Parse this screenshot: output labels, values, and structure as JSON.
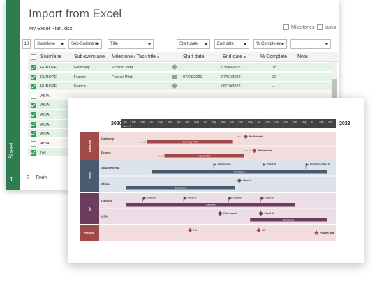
{
  "window": {
    "title": "Import from Excel",
    "file_name": "My Excel Plan.xlsx",
    "milestones_label": "Milestones",
    "tasks_label": "tasks",
    "sheet_vertical_label": "Sheet",
    "sheet_number": "1"
  },
  "column_mapping": {
    "row_number": "18",
    "dropdowns": [
      "Swimlane",
      "Sub-Swimlane",
      "Title",
      "Start date",
      "End date",
      "% Completed",
      ""
    ]
  },
  "table": {
    "headers": [
      "Swimlane",
      "Sub-swimlane",
      "Milestone / Task title",
      "Start date",
      "End date",
      "% Complete",
      "Note"
    ],
    "rows": [
      {
        "swimlane": "EUROPE",
        "sub": "Germany",
        "title": "Publish data",
        "start": "",
        "end": "03/04/2022",
        "pct": "15",
        "checked": true
      },
      {
        "swimlane": "EUROPE",
        "sub": "France",
        "title": "France Pilot",
        "start": "07/03/2021",
        "end": "07/01/2022",
        "pct": "20",
        "checked": true
      },
      {
        "swimlane": "EUROPE",
        "sub": "France",
        "title": "",
        "start": "",
        "end": "06/10/2022",
        "pct": "-",
        "checked": true
      },
      {
        "swimlane": "ASIA",
        "sub": "",
        "title": "",
        "start": "",
        "end": "",
        "pct": "",
        "checked": false
      },
      {
        "swimlane": "ASIA",
        "sub": "",
        "title": "",
        "start": "",
        "end": "",
        "pct": "",
        "checked": true
      },
      {
        "swimlane": "ASIA",
        "sub": "",
        "title": "",
        "start": "",
        "end": "",
        "pct": "",
        "checked": true
      },
      {
        "swimlane": "ASIA",
        "sub": "",
        "title": "",
        "start": "",
        "end": "",
        "pct": "",
        "checked": true
      },
      {
        "swimlane": "ASIA",
        "sub": "",
        "title": "",
        "start": "",
        "end": "",
        "pct": "",
        "checked": true
      },
      {
        "swimlane": "ASIA",
        "sub": "",
        "title": "",
        "start": "",
        "end": "",
        "pct": "",
        "checked": false
      },
      {
        "swimlane": "NA",
        "sub": "",
        "title": "",
        "start": "",
        "end": "",
        "pct": "",
        "checked": true
      }
    ]
  },
  "bottom_tabs": [
    "2",
    "Data"
  ],
  "timeline": {
    "start_year": "2020",
    "end_year": "2023",
    "months": [
      "Jan",
      "Mar",
      "May",
      "Jul",
      "Sep",
      "Nov",
      "Jan",
      "Mar",
      "May",
      "Jul",
      "Sep",
      "Nov",
      "Jan",
      "Mar",
      "May",
      "Jul",
      "Sep",
      "Nov",
      "Jan",
      "Mar",
      "May",
      "Jul",
      "Sep",
      "Nov"
    ],
    "week_label": "Week 1",
    "colors": {
      "europe": "#a24a4a",
      "europe_bg": "#f3dcdc",
      "asia": "#4a5a6f",
      "asia_bg": "#dde3ea",
      "na": "#6c3c5c",
      "na_bg": "#ecdde6",
      "other": "#a24a4a",
      "other_bg": "#f3dcdc",
      "header": "#424242"
    },
    "swimlanes": [
      {
        "name": "EUROPE",
        "color": "#a24a4a",
        "bg": "#f3dcdc",
        "rows": [
          {
            "label": "Germany",
            "items": [
              {
                "type": "milestone",
                "x": 0.58,
                "label": "Publish data",
                "date": "Mar 4"
              },
              {
                "type": "task",
                "x1": 0.12,
                "x2": 0.52,
                "label": "Germany Pilot",
                "date": "Jan 18"
              }
            ]
          },
          {
            "label": "France",
            "items": [
              {
                "type": "milestone",
                "x": 0.62,
                "label": "Publish data",
                "date": "Oct 10"
              },
              {
                "type": "task",
                "x1": 0.2,
                "x2": 0.57,
                "label": "France Pilot",
                "date": "Jul 3"
              }
            ]
          }
        ]
      },
      {
        "name": "ASIA",
        "color": "#4a5a6f",
        "bg": "#dde3ea",
        "rows": [
          {
            "label": "South Korea",
            "items": [
              {
                "type": "flag",
                "x": 0.43,
                "label": "Data refresh"
              },
              {
                "type": "flag",
                "x": 0.66,
                "label": "Client III"
              },
              {
                "type": "flag",
                "x": 0.86,
                "label": "Publish to Client III"
              },
              {
                "type": "task",
                "x1": 0.14,
                "x2": 0.96,
                "label": "Production"
              }
            ]
          },
          {
            "label": "China",
            "items": [
              {
                "type": "milestone",
                "x": 0.55,
                "label": "Client I"
              },
              {
                "type": "task",
                "x1": 0.02,
                "x2": 0.53,
                "label": "Execution"
              }
            ]
          }
        ]
      },
      {
        "name": "NA",
        "color": "#6c3c5c",
        "bg": "#ecdde6",
        "rows": [
          {
            "label": "Canada",
            "items": [
              {
                "type": "flag",
                "x": 0.1,
                "label": "Client III"
              },
              {
                "type": "flag",
                "x": 0.29,
                "label": "Client III"
              },
              {
                "type": "flag",
                "x": 0.5,
                "label": "Client III"
              },
              {
                "type": "flag",
                "x": 0.65,
                "label": "Client III"
              },
              {
                "type": "task",
                "x1": 0.02,
                "x2": 0.81,
                "label": "Production"
              }
            ]
          },
          {
            "label": "USA",
            "items": [
              {
                "type": "milestone",
                "x": 0.46,
                "label": "Data refresh"
              },
              {
                "type": "milestone",
                "x": 0.65,
                "label": "Client III"
              },
              {
                "type": "task",
                "x1": 0.6,
                "x2": 0.96,
                "label": "Execution"
              }
            ]
          }
        ]
      },
      {
        "name": "OTHER",
        "color": "#a24a4a",
        "bg": "#f3dcdc",
        "rows": [
          {
            "label": "",
            "items": [
              {
                "type": "milestone",
                "x": 0.32,
                "label": "Hit"
              },
              {
                "type": "milestone",
                "x": 0.64,
                "label": "Hit"
              },
              {
                "type": "star",
                "x": 0.91,
                "label": "Publish data"
              }
            ]
          }
        ]
      }
    ]
  }
}
